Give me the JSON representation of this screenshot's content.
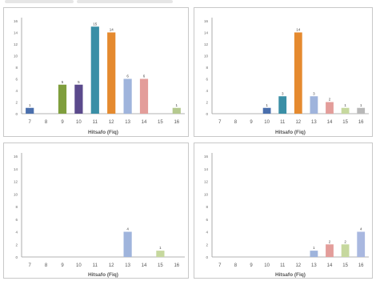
{
  "chart_data": [
    {
      "type": "bar",
      "categories": [
        "7",
        "8",
        "9",
        "10",
        "11",
        "12",
        "13",
        "14",
        "15",
        "16"
      ],
      "values": [
        1,
        0,
        5,
        5,
        15,
        14,
        6,
        6,
        0,
        1
      ],
      "data_labels": [
        "1",
        "",
        "5",
        "5",
        "15",
        "14",
        "6",
        "6",
        "",
        "1"
      ],
      "bar_colors": [
        "#4a6fad",
        "#cccccc",
        "#7f9e3d",
        "#5b4a8c",
        "#3a8fa6",
        "#e58a2f",
        "#9fb4dc",
        "#e39d9a",
        "#cccccc",
        "#b5c98f"
      ],
      "xlabel": "Hitsafo (Fiq)",
      "ylim": [
        0,
        16
      ],
      "yticks": [
        "0",
        "2",
        "4",
        "6",
        "8",
        "10",
        "12",
        "14",
        "16"
      ]
    },
    {
      "type": "bar",
      "categories": [
        "7",
        "8",
        "9",
        "10",
        "11",
        "12",
        "13",
        "14",
        "15",
        "16"
      ],
      "values": [
        0,
        0,
        0,
        1,
        3,
        14,
        3,
        2,
        1,
        1
      ],
      "data_labels": [
        "",
        "",
        "",
        "1",
        "3",
        "14",
        "3",
        "2",
        "1",
        "1"
      ],
      "bar_colors": [
        "#cccccc",
        "#cccccc",
        "#cccccc",
        "#4a6fad",
        "#3a8fa6",
        "#e58a2f",
        "#9fb4dc",
        "#e39d9a",
        "#c6d89e",
        "#b8b8b8"
      ],
      "xlabel": "Hitsafo (Fiq)",
      "ylim": [
        0,
        16
      ],
      "yticks": [
        "0",
        "2",
        "4",
        "6",
        "8",
        "10",
        "12",
        "14",
        "16"
      ]
    },
    {
      "type": "bar",
      "categories": [
        "7",
        "8",
        "9",
        "10",
        "11",
        "12",
        "13",
        "14",
        "15",
        "16"
      ],
      "values": [
        0,
        0,
        0,
        0,
        0,
        0,
        4,
        0,
        1,
        0
      ],
      "data_labels": [
        "",
        "",
        "",
        "",
        "",
        "",
        "4",
        "",
        "1",
        ""
      ],
      "bar_colors": [
        "#cccccc",
        "#cccccc",
        "#cccccc",
        "#cccccc",
        "#cccccc",
        "#cccccc",
        "#9fb4dc",
        "#cccccc",
        "#c6d89e",
        "#cccccc"
      ],
      "xlabel": "Hitsafo (Fiq)",
      "ylim": [
        0,
        16
      ],
      "yticks": [
        "0",
        "2",
        "4",
        "6",
        "8",
        "10",
        "12",
        "14",
        "16"
      ]
    },
    {
      "type": "bar",
      "categories": [
        "7",
        "8",
        "9",
        "10",
        "11",
        "12",
        "13",
        "14",
        "15",
        "16"
      ],
      "values": [
        0,
        0,
        0,
        0,
        0,
        0,
        1,
        2,
        2,
        4
      ],
      "data_labels": [
        "",
        "",
        "",
        "",
        "",
        "",
        "1",
        "2",
        "2",
        "4"
      ],
      "bar_colors": [
        "#cccccc",
        "#cccccc",
        "#cccccc",
        "#cccccc",
        "#cccccc",
        "#cccccc",
        "#9fb4dc",
        "#e39d9a",
        "#c6d89e",
        "#a9b8e0"
      ],
      "xlabel": "Hitsafo (Fiq)",
      "ylim": [
        0,
        16
      ],
      "yticks": [
        "0",
        "2",
        "4",
        "6",
        "8",
        "10",
        "12",
        "14",
        "16"
      ]
    }
  ]
}
